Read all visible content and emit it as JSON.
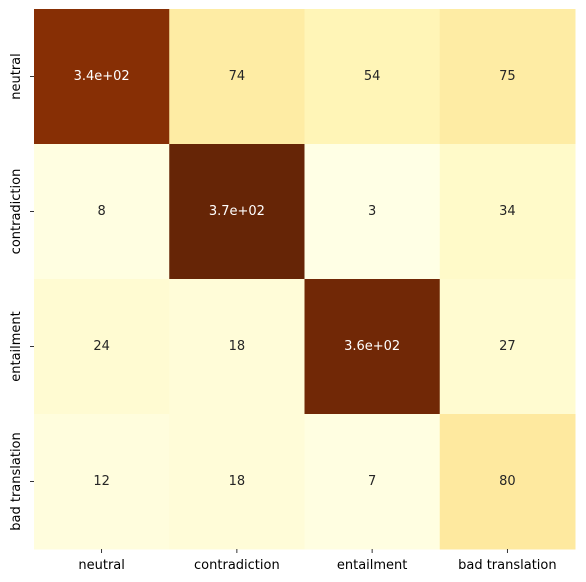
{
  "chart_data": {
    "type": "heatmap",
    "title": "",
    "xlabel": "",
    "ylabel": "",
    "x_categories": [
      "neutral",
      "contradiction",
      "entailment",
      "bad translation"
    ],
    "y_categories": [
      "neutral",
      "contradiction",
      "entailment",
      "bad translation"
    ],
    "values": [
      [
        340,
        74,
        54,
        75
      ],
      [
        8,
        370,
        3,
        34
      ],
      [
        24,
        18,
        360,
        27
      ],
      [
        12,
        18,
        7,
        80
      ]
    ],
    "cell_labels": [
      [
        "3.4e+02",
        "74",
        "54",
        "75"
      ],
      [
        "8",
        "3.7e+02",
        "3",
        "34"
      ],
      [
        "24",
        "18",
        "3.6e+02",
        "27"
      ],
      [
        "12",
        "18",
        "7",
        "80"
      ]
    ],
    "colormap": "YlOrBr",
    "colorbar": false,
    "grid": false
  }
}
